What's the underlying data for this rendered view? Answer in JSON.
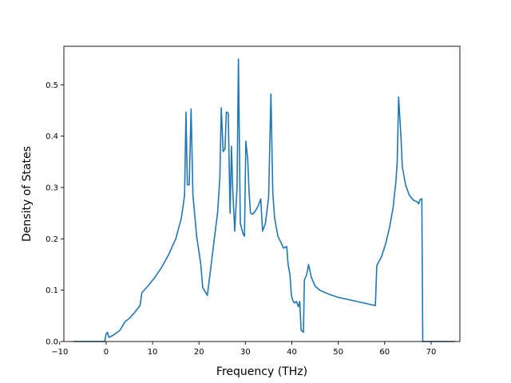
{
  "chart_data": {
    "type": "line",
    "title": "",
    "xlabel": "Frequency (THz)",
    "ylabel": "Density of States",
    "xlim": [
      -9.1,
      76.2
    ],
    "ylim": [
      0.0,
      0.575
    ],
    "xticks": [
      -10,
      0,
      10,
      20,
      30,
      40,
      50,
      60,
      70
    ],
    "xtick_labels": [
      "−10",
      "0",
      "10",
      "20",
      "30",
      "40",
      "50",
      "60",
      "70"
    ],
    "yticks": [
      0.0,
      0.1,
      0.2,
      0.3,
      0.4,
      0.5
    ],
    "ytick_labels": [
      "0.0",
      "0.1",
      "0.2",
      "0.3",
      "0.4",
      "0.5"
    ],
    "grid": false,
    "legend": "none",
    "line_color": "#1f77b4",
    "series": [
      {
        "points": [
          [
            -7.0,
            0.0
          ],
          [
            -0.3,
            0.0
          ],
          [
            0.0,
            0.015
          ],
          [
            0.3,
            0.018
          ],
          [
            0.6,
            0.008
          ],
          [
            1.5,
            0.012
          ],
          [
            3.0,
            0.022
          ],
          [
            4.0,
            0.038
          ],
          [
            5.0,
            0.045
          ],
          [
            6.0,
            0.055
          ],
          [
            7.3,
            0.07
          ],
          [
            7.7,
            0.095
          ],
          [
            9.0,
            0.108
          ],
          [
            10.5,
            0.125
          ],
          [
            12.0,
            0.145
          ],
          [
            13.5,
            0.17
          ],
          [
            15.0,
            0.2
          ],
          [
            16.2,
            0.24
          ],
          [
            16.9,
            0.285
          ],
          [
            17.2,
            0.447
          ],
          [
            17.5,
            0.305
          ],
          [
            17.9,
            0.305
          ],
          [
            18.3,
            0.453
          ],
          [
            18.7,
            0.285
          ],
          [
            19.5,
            0.205
          ],
          [
            20.4,
            0.15
          ],
          [
            20.8,
            0.105
          ],
          [
            21.8,
            0.09
          ],
          [
            22.5,
            0.14
          ],
          [
            23.3,
            0.2
          ],
          [
            24.0,
            0.25
          ],
          [
            24.5,
            0.32
          ],
          [
            24.8,
            0.455
          ],
          [
            25.2,
            0.37
          ],
          [
            25.6,
            0.375
          ],
          [
            25.9,
            0.447
          ],
          [
            26.3,
            0.445
          ],
          [
            26.7,
            0.25
          ],
          [
            27.0,
            0.38
          ],
          [
            27.3,
            0.29
          ],
          [
            27.7,
            0.215
          ],
          [
            28.2,
            0.3
          ],
          [
            28.5,
            0.55
          ],
          [
            28.9,
            0.23
          ],
          [
            29.5,
            0.21
          ],
          [
            29.8,
            0.205
          ],
          [
            30.1,
            0.39
          ],
          [
            30.5,
            0.355
          ],
          [
            30.8,
            0.29
          ],
          [
            31.1,
            0.25
          ],
          [
            31.6,
            0.248
          ],
          [
            32.2,
            0.255
          ],
          [
            32.8,
            0.265
          ],
          [
            33.3,
            0.278
          ],
          [
            33.7,
            0.215
          ],
          [
            34.3,
            0.23
          ],
          [
            35.0,
            0.28
          ],
          [
            35.5,
            0.482
          ],
          [
            35.9,
            0.29
          ],
          [
            36.3,
            0.24
          ],
          [
            37.0,
            0.205
          ],
          [
            37.8,
            0.19
          ],
          [
            38.2,
            0.182
          ],
          [
            38.9,
            0.185
          ],
          [
            39.2,
            0.15
          ],
          [
            39.6,
            0.13
          ],
          [
            39.9,
            0.09
          ],
          [
            40.2,
            0.08
          ],
          [
            40.6,
            0.075
          ],
          [
            41.0,
            0.078
          ],
          [
            41.4,
            0.068
          ],
          [
            41.7,
            0.078
          ],
          [
            42.0,
            0.022
          ],
          [
            42.5,
            0.018
          ],
          [
            42.7,
            0.12
          ],
          [
            43.2,
            0.13
          ],
          [
            43.6,
            0.15
          ],
          [
            44.2,
            0.125
          ],
          [
            45.0,
            0.108
          ],
          [
            46.0,
            0.1
          ],
          [
            48.0,
            0.092
          ],
          [
            50.0,
            0.086
          ],
          [
            53.0,
            0.08
          ],
          [
            56.0,
            0.074
          ],
          [
            58.0,
            0.07
          ],
          [
            58.3,
            0.148
          ],
          [
            59.3,
            0.165
          ],
          [
            60.2,
            0.19
          ],
          [
            61.0,
            0.22
          ],
          [
            61.8,
            0.26
          ],
          [
            62.4,
            0.31
          ],
          [
            62.7,
            0.35
          ],
          [
            63.0,
            0.476
          ],
          [
            63.5,
            0.4
          ],
          [
            63.8,
            0.34
          ],
          [
            64.5,
            0.305
          ],
          [
            65.3,
            0.285
          ],
          [
            66.2,
            0.275
          ],
          [
            67.0,
            0.272
          ],
          [
            67.3,
            0.268
          ],
          [
            67.6,
            0.276
          ],
          [
            68.0,
            0.278
          ],
          [
            68.2,
            0.0
          ],
          [
            75.0,
            0.0
          ]
        ]
      }
    ]
  }
}
